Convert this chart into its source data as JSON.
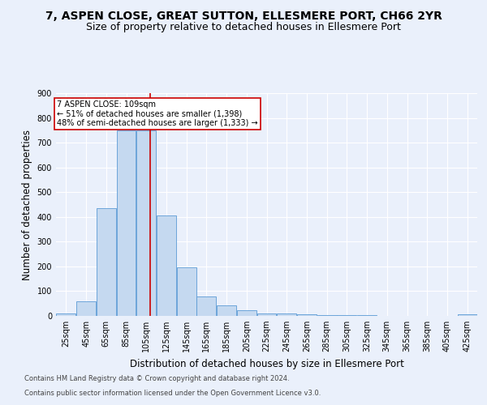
{
  "title_line1": "7, ASPEN CLOSE, GREAT SUTTON, ELLESMERE PORT, CH66 2YR",
  "title_line2": "Size of property relative to detached houses in Ellesmere Port",
  "xlabel": "Distribution of detached houses by size in Ellesmere Port",
  "ylabel": "Number of detached properties",
  "footer_line1": "Contains HM Land Registry data © Crown copyright and database right 2024.",
  "footer_line2": "Contains public sector information licensed under the Open Government Licence v3.0.",
  "bin_labels": [
    "25sqm",
    "45sqm",
    "65sqm",
    "85sqm",
    "105sqm",
    "125sqm",
    "145sqm",
    "165sqm",
    "185sqm",
    "205sqm",
    "225sqm",
    "245sqm",
    "265sqm",
    "285sqm",
    "305sqm",
    "325sqm",
    "345sqm",
    "365sqm",
    "385sqm",
    "405sqm",
    "425sqm"
  ],
  "bin_edges": [
    15,
    35,
    55,
    75,
    95,
    115,
    135,
    155,
    175,
    195,
    215,
    235,
    255,
    275,
    295,
    315,
    335,
    355,
    375,
    395,
    415,
    435
  ],
  "bar_values": [
    10,
    60,
    435,
    750,
    750,
    405,
    197,
    78,
    42,
    22,
    10,
    10,
    8,
    4,
    3,
    2,
    1,
    0,
    0,
    0,
    5
  ],
  "bar_color": "#c5d9f0",
  "bar_edge_color": "#5b9bd5",
  "vline_x": 109,
  "vline_color": "#cc0000",
  "annotation_line1": "7 ASPEN CLOSE: 109sqm",
  "annotation_line2": "← 51% of detached houses are smaller (1,398)",
  "annotation_line3": "48% of semi-detached houses are larger (1,333) →",
  "annotation_box_color": "#ffffff",
  "annotation_box_edge": "#cc0000",
  "bg_color": "#eaf0fb",
  "plot_bg_color": "#eaf0fb",
  "ylim": [
    0,
    900
  ],
  "yticks": [
    0,
    100,
    200,
    300,
    400,
    500,
    600,
    700,
    800,
    900
  ],
  "grid_color": "#ffffff",
  "title_fontsize": 10,
  "subtitle_fontsize": 9,
  "axis_label_fontsize": 8.5,
  "tick_fontsize": 7,
  "footer_fontsize": 6
}
